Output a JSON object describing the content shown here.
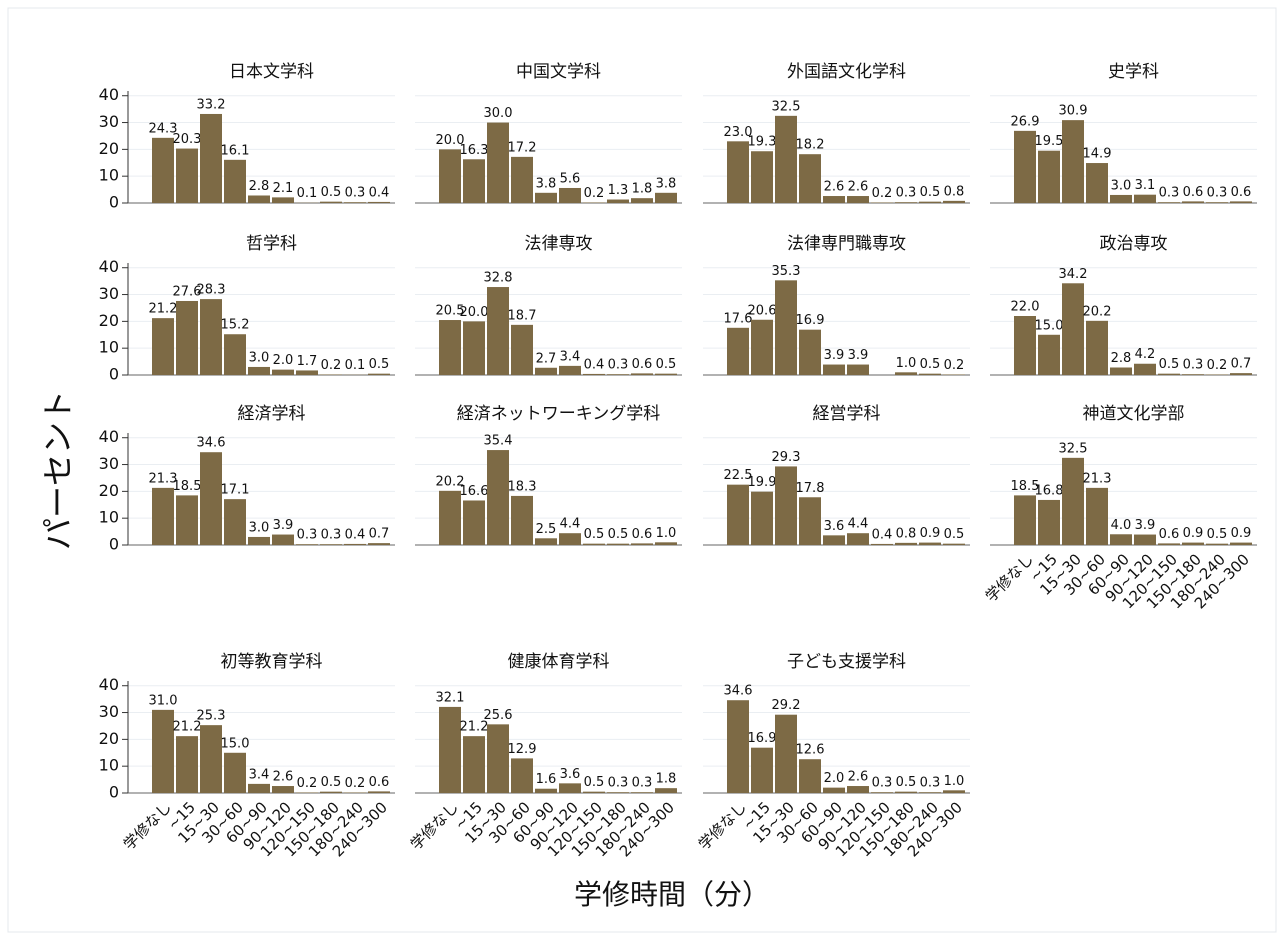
{
  "ylabel": "パーセント",
  "xlabel": "学修時間（分）",
  "categories": [
    "学修なし",
    "~15",
    "15~30",
    "30~60",
    "60~90",
    "90~120",
    "120~150",
    "150~180",
    "180~240",
    "240~300"
  ],
  "ylim": [
    0,
    44
  ],
  "yticks": [
    0,
    10,
    20,
    30,
    40
  ],
  "color": "#7d6a45",
  "grid": true,
  "chart_data": [
    {
      "type": "bar",
      "title": "日本文学科",
      "values": [
        24.3,
        20.3,
        33.2,
        16.1,
        2.8,
        2.1,
        0.1,
        0.5,
        0.3,
        0.4
      ],
      "value_labels": [
        "24.3",
        "20.3",
        "33.2",
        "16.1",
        "2.8",
        "2.1",
        "0.1",
        "0.5",
        "0.3",
        "0.4"
      ]
    },
    {
      "type": "bar",
      "title": "中国文学科",
      "values": [
        20.0,
        16.3,
        30.0,
        17.2,
        3.8,
        5.6,
        0.2,
        1.3,
        1.8,
        3.8
      ],
      "value_labels": [
        "20.0",
        "16.3",
        "30.0",
        "17.2",
        "3.8",
        "5.6",
        "0.2",
        "1.3",
        "1.8",
        "3.8"
      ]
    },
    {
      "type": "bar",
      "title": "外国語文化学科",
      "values": [
        23.0,
        19.3,
        32.5,
        18.2,
        2.6,
        2.6,
        0.2,
        0.3,
        0.5,
        0.8
      ],
      "value_labels": [
        "23.0",
        "19.3",
        "32.5",
        "18.2",
        "2.6",
        "2.6",
        "0.2",
        "0.3",
        "0.5",
        "0.8"
      ]
    },
    {
      "type": "bar",
      "title": "史学科",
      "values": [
        26.9,
        19.5,
        30.9,
        14.9,
        3.0,
        3.1,
        0.3,
        0.6,
        0.3,
        0.6
      ],
      "value_labels": [
        "26.9",
        "19.5",
        "30.9",
        "14.9",
        "3.0",
        "3.1",
        "0.3",
        "0.6",
        "0.3",
        "0.6"
      ]
    },
    {
      "type": "bar",
      "title": "哲学科",
      "values": [
        21.2,
        27.6,
        28.3,
        15.2,
        3.0,
        2.0,
        1.7,
        0.2,
        0.1,
        0.5
      ],
      "value_labels": [
        "21.2",
        "27.6",
        "28.3",
        "15.2",
        "3.0",
        "2.0",
        "1.7",
        "0.2",
        "0.1",
        "0.5"
      ]
    },
    {
      "type": "bar",
      "title": "法律専攻",
      "values": [
        20.5,
        20.0,
        32.8,
        18.7,
        2.7,
        3.4,
        0.4,
        0.3,
        0.6,
        0.5
      ],
      "value_labels": [
        "20.5",
        "20.0",
        "32.8",
        "18.7",
        "2.7",
        "3.4",
        "0.4",
        "0.3",
        "0.6",
        "0.5"
      ]
    },
    {
      "type": "bar",
      "title": "法律専門職専攻",
      "values": [
        17.6,
        20.6,
        35.3,
        16.9,
        3.9,
        3.9,
        null,
        1.0,
        0.5,
        0.2
      ],
      "value_labels": [
        "17.6",
        "20.6",
        "35.3",
        "16.9",
        "3.9",
        "3.9",
        null,
        "1.0",
        "0.5",
        "0.2"
      ]
    },
    {
      "type": "bar",
      "title": "政治専攻",
      "values": [
        22.0,
        15.0,
        34.2,
        20.2,
        2.8,
        4.2,
        0.5,
        0.3,
        0.2,
        0.7
      ],
      "value_labels": [
        "22.0",
        "15.0",
        "34.2",
        "20.2",
        "2.8",
        "4.2",
        "0.5",
        "0.3",
        "0.2",
        "0.7"
      ]
    },
    {
      "type": "bar",
      "title": "経済学科",
      "values": [
        21.3,
        18.5,
        34.6,
        17.1,
        3.0,
        3.9,
        0.3,
        0.3,
        0.4,
        0.7
      ],
      "value_labels": [
        "21.3",
        "18.5",
        "34.6",
        "17.1",
        "3.0",
        "3.9",
        "0.3",
        "0.3",
        "0.4",
        "0.7"
      ]
    },
    {
      "type": "bar",
      "title": "経済ネットワーキング学科",
      "values": [
        20.2,
        16.6,
        35.4,
        18.3,
        2.5,
        4.4,
        0.5,
        0.5,
        0.6,
        1.0
      ],
      "value_labels": [
        "20.2",
        "16.6",
        "35.4",
        "18.3",
        "2.5",
        "4.4",
        "0.5",
        "0.5",
        "0.6",
        "1.0"
      ]
    },
    {
      "type": "bar",
      "title": "経営学科",
      "values": [
        22.5,
        19.9,
        29.3,
        17.8,
        3.6,
        4.4,
        0.4,
        0.8,
        0.9,
        0.5
      ],
      "value_labels": [
        "22.5",
        "19.9",
        "29.3",
        "17.8",
        "3.6",
        "4.4",
        "0.4",
        "0.8",
        "0.9",
        "0.5"
      ]
    },
    {
      "type": "bar",
      "title": "神道文化学部",
      "values": [
        18.5,
        16.8,
        32.5,
        21.3,
        4.0,
        3.9,
        0.6,
        0.9,
        0.5,
        0.9
      ],
      "value_labels": [
        "18.5",
        "16.8",
        "32.5",
        "21.3",
        "4.0",
        "3.9",
        "0.6",
        "0.9",
        "0.5",
        "0.9"
      ]
    },
    {
      "type": "bar",
      "title": "初等教育学科",
      "values": [
        31.0,
        21.2,
        25.3,
        15.0,
        3.4,
        2.6,
        0.2,
        0.5,
        0.2,
        0.6
      ],
      "value_labels": [
        "31.0",
        "21.2",
        "25.3",
        "15.0",
        "3.4",
        "2.6",
        "0.2",
        "0.5",
        "0.2",
        "0.6"
      ]
    },
    {
      "type": "bar",
      "title": "健康体育学科",
      "values": [
        32.1,
        21.2,
        25.6,
        12.9,
        1.6,
        3.6,
        0.5,
        0.3,
        0.3,
        1.8
      ],
      "value_labels": [
        "32.1",
        "21.2",
        "25.6",
        "12.9",
        "1.6",
        "3.6",
        "0.5",
        "0.3",
        "0.3",
        "1.8"
      ]
    },
    {
      "type": "bar",
      "title": "子ども支援学科",
      "values": [
        34.6,
        16.9,
        29.2,
        12.6,
        2.0,
        2.6,
        0.3,
        0.5,
        0.3,
        1.0
      ],
      "value_labels": [
        "34.6",
        "16.9",
        "29.2",
        "12.6",
        "2.0",
        "2.6",
        "0.3",
        "0.5",
        "0.3",
        "1.0"
      ]
    }
  ]
}
